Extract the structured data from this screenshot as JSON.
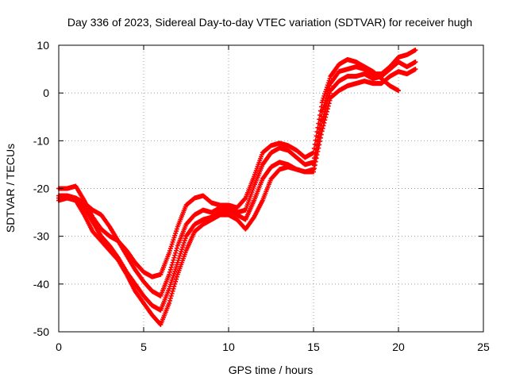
{
  "chart_data": {
    "type": "scatter",
    "title": "Day 336 of 2023, Sidereal Day-to-day VTEC variation (SDTVAR) for receiver hugh",
    "xlabel": "GPS time / hours",
    "ylabel": "SDTVAR / TECUs",
    "xlim": [
      0,
      25
    ],
    "ylim": [
      -50,
      10
    ],
    "xticks": [
      "0",
      "5",
      "10",
      "15",
      "20",
      "25"
    ],
    "yticks": [
      "10",
      "0",
      "-10",
      "-20",
      "-30",
      "-40",
      "-50"
    ],
    "grid": true,
    "marker": "+",
    "color": "#ff0000",
    "series": [
      {
        "x": [
          0.0,
          0.5,
          1.0,
          1.5,
          2.0,
          2.5,
          3.0,
          3.5,
          4.0,
          4.5,
          5.0,
          5.5,
          6.0,
          6.5,
          7.0,
          7.5,
          8.0,
          8.5,
          9.0,
          9.5,
          10.0,
          10.5,
          11.0,
          11.5,
          12.0,
          12.5,
          13.0,
          13.5,
          14.0,
          14.5,
          15.0,
          15.5,
          16.0,
          16.5,
          17.0,
          17.5,
          18.0,
          18.5,
          19.0,
          19.5,
          20.0,
          20.5,
          21.0
        ],
        "y": [
          -22.5,
          -22.0,
          -22.5,
          -25.5,
          -29.0,
          -31.0,
          -33.0,
          -35.0,
          -38.0,
          -41.5,
          -44.0,
          -46.5,
          -48.5,
          -44.0,
          -38.0,
          -33.0,
          -29.0,
          -27.5,
          -26.5,
          -25.5,
          -25.5,
          -26.5,
          -28.5,
          -26.0,
          -22.5,
          -18.0,
          -16.0,
          -15.5,
          -16.0,
          -16.5,
          -16.5,
          -8.0,
          -1.0,
          0.5,
          1.5,
          2.0,
          2.5,
          2.0,
          2.0,
          3.5,
          4.5,
          4.0,
          5.0
        ]
      },
      {
        "x": [
          0.0,
          0.5,
          1.0,
          1.5,
          2.0,
          2.5,
          3.0,
          3.5,
          4.0,
          4.5,
          5.0,
          5.5,
          6.0,
          6.5,
          7.0,
          7.5,
          8.0,
          8.5,
          9.0,
          9.5,
          10.0,
          10.5,
          11.0,
          11.5,
          12.0,
          12.5,
          13.0,
          13.5,
          14.0,
          14.5,
          15.0,
          15.5,
          16.0,
          16.5,
          17.0,
          17.5,
          18.0,
          18.5,
          19.0,
          19.5,
          20.0,
          20.5,
          21.0
        ],
        "y": [
          -22.0,
          -22.0,
          -22.0,
          -24.0,
          -27.0,
          -30.0,
          -32.0,
          -34.5,
          -37.5,
          -40.0,
          -42.5,
          -44.5,
          -45.5,
          -41.0,
          -35.5,
          -30.0,
          -27.5,
          -26.5,
          -26.0,
          -25.0,
          -24.5,
          -25.5,
          -26.5,
          -22.5,
          -18.0,
          -15.5,
          -14.5,
          -15.0,
          -16.0,
          -16.5,
          -16.0,
          -6.0,
          0.5,
          2.5,
          3.5,
          3.5,
          4.0,
          3.0,
          3.5,
          5.0,
          6.5,
          5.5,
          6.5
        ]
      },
      {
        "x": [
          0.0,
          0.5,
          1.0,
          1.5,
          2.0,
          2.5,
          3.0,
          3.5,
          4.0,
          4.5,
          5.0,
          5.5,
          6.0,
          6.5,
          7.0,
          7.5,
          8.0,
          8.5,
          9.0,
          9.5,
          10.0,
          10.5,
          11.0,
          11.5,
          12.0,
          12.5,
          13.0,
          13.5,
          14.0,
          14.5,
          15.0,
          15.5,
          16.0,
          16.5,
          17.0,
          17.5,
          18.0,
          18.5,
          19.0,
          19.5,
          20.0,
          20.5,
          21.0
        ],
        "y": [
          -21.5,
          -21.5,
          -22.0,
          -23.0,
          -24.5,
          -25.5,
          -28.0,
          -31.0,
          -34.0,
          -37.0,
          -39.5,
          -41.5,
          -42.5,
          -38.0,
          -32.0,
          -27.5,
          -25.5,
          -24.5,
          -25.0,
          -24.0,
          -24.0,
          -25.0,
          -24.5,
          -19.5,
          -15.0,
          -12.5,
          -11.5,
          -12.0,
          -13.5,
          -15.0,
          -14.5,
          -4.0,
          2.0,
          4.5,
          5.0,
          5.5,
          5.0,
          4.0,
          4.0,
          5.5,
          7.5,
          8.0,
          9.0
        ]
      },
      {
        "x": [
          0.0,
          0.5,
          1.0,
          1.5,
          2.0,
          2.5,
          3.0,
          3.5,
          4.0,
          4.5,
          5.0,
          5.5,
          6.0,
          6.5,
          7.0,
          7.5,
          8.0,
          8.5,
          9.0,
          9.5,
          10.0,
          10.5,
          11.0,
          11.5,
          12.0,
          12.5,
          13.0,
          13.5,
          14.0,
          14.5,
          15.0,
          15.5,
          16.0,
          16.5,
          17.0,
          17.5,
          18.0,
          18.5,
          19.0,
          19.5,
          20.0
        ],
        "y": [
          -20.0,
          -20.0,
          -19.5,
          -22.5,
          -26.0,
          -28.5,
          -30.0,
          -31.0,
          -33.0,
          -35.5,
          -37.5,
          -38.5,
          -38.0,
          -33.5,
          -28.0,
          -23.5,
          -22.0,
          -21.5,
          -23.0,
          -23.5,
          -23.5,
          -24.0,
          -22.0,
          -17.5,
          -12.5,
          -11.0,
          -10.5,
          -11.0,
          -12.0,
          -13.5,
          -12.5,
          -2.0,
          3.5,
          6.0,
          7.0,
          6.5,
          5.5,
          4.5,
          3.0,
          1.5,
          0.5
        ]
      }
    ]
  }
}
